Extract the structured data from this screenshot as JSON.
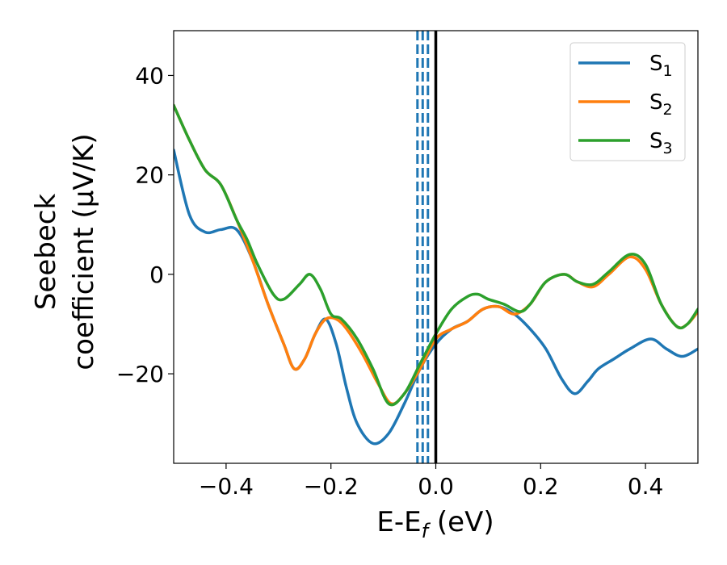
{
  "chart_data": {
    "type": "line",
    "title": "",
    "xlabel": {
      "main": "E-E",
      "sub": "f",
      "unit": " (eV)"
    },
    "ylabel": {
      "line1": "Seebeck",
      "line2": "coefficient  (μV/K)"
    },
    "xlim": [
      -0.5,
      0.5
    ],
    "ylim": [
      -38,
      49
    ],
    "xticks": [
      -0.4,
      -0.2,
      0.0,
      0.2,
      0.4
    ],
    "xtick_labels": [
      "−0.4",
      "−0.2",
      "0.0",
      "0.2",
      "0.4"
    ],
    "yticks": [
      -20,
      0,
      20,
      40
    ],
    "ytick_labels": [
      "−20",
      "0",
      "20",
      "40"
    ],
    "grid": false,
    "legend_position": "top-right",
    "fermi_line": {
      "x": 0.0,
      "color": "#000000"
    },
    "dashed_lines": {
      "x": [
        -0.035,
        -0.025,
        -0.015
      ],
      "color": "#1f77b4"
    },
    "series": [
      {
        "name": "S",
        "sub": "1",
        "color": "#1f77b4",
        "points": [
          [
            -0.5,
            25
          ],
          [
            -0.47,
            12
          ],
          [
            -0.44,
            8.5
          ],
          [
            -0.41,
            9
          ],
          [
            -0.38,
            9
          ],
          [
            -0.35,
            3
          ],
          [
            -0.32,
            -6
          ],
          [
            -0.29,
            -14
          ],
          [
            -0.27,
            -19
          ],
          [
            -0.25,
            -17
          ],
          [
            -0.23,
            -12
          ],
          [
            -0.21,
            -9
          ],
          [
            -0.19,
            -14
          ],
          [
            -0.17,
            -23
          ],
          [
            -0.15,
            -30
          ],
          [
            -0.12,
            -34
          ],
          [
            -0.09,
            -32
          ],
          [
            -0.06,
            -26
          ],
          [
            -0.03,
            -19
          ],
          [
            0.0,
            -14
          ],
          [
            0.03,
            -11
          ],
          [
            0.06,
            -9.5
          ],
          [
            0.09,
            -7
          ],
          [
            0.12,
            -6.5
          ],
          [
            0.15,
            -8
          ],
          [
            0.18,
            -11
          ],
          [
            0.21,
            -15
          ],
          [
            0.24,
            -21
          ],
          [
            0.265,
            -24
          ],
          [
            0.29,
            -21.5
          ],
          [
            0.31,
            -19
          ],
          [
            0.34,
            -17
          ],
          [
            0.37,
            -15
          ],
          [
            0.41,
            -13
          ],
          [
            0.44,
            -15
          ],
          [
            0.47,
            -16.5
          ],
          [
            0.5,
            -15
          ]
        ]
      },
      {
        "name": "S",
        "sub": "2",
        "color": "#ff7f0e",
        "points": [
          [
            -0.5,
            34
          ],
          [
            -0.47,
            27
          ],
          [
            -0.44,
            21
          ],
          [
            -0.41,
            18
          ],
          [
            -0.38,
            11
          ],
          [
            -0.35,
            3
          ],
          [
            -0.32,
            -6
          ],
          [
            -0.29,
            -14
          ],
          [
            -0.27,
            -19
          ],
          [
            -0.25,
            -17
          ],
          [
            -0.23,
            -12
          ],
          [
            -0.21,
            -9
          ],
          [
            -0.19,
            -9
          ],
          [
            -0.17,
            -11
          ],
          [
            -0.14,
            -16
          ],
          [
            -0.11,
            -22
          ],
          [
            -0.085,
            -26
          ],
          [
            -0.06,
            -24
          ],
          [
            -0.03,
            -19
          ],
          [
            0.0,
            -13
          ],
          [
            0.03,
            -11
          ],
          [
            0.06,
            -9.5
          ],
          [
            0.09,
            -7
          ],
          [
            0.12,
            -6.5
          ],
          [
            0.15,
            -8
          ],
          [
            0.18,
            -6
          ],
          [
            0.21,
            -1.5
          ],
          [
            0.245,
            0
          ],
          [
            0.27,
            -1.5
          ],
          [
            0.3,
            -2.5
          ],
          [
            0.33,
            0
          ],
          [
            0.37,
            3.5
          ],
          [
            0.4,
            1
          ],
          [
            0.43,
            -6
          ],
          [
            0.46,
            -10.5
          ],
          [
            0.48,
            -10
          ],
          [
            0.5,
            -7.5
          ]
        ]
      },
      {
        "name": "S",
        "sub": "3",
        "color": "#2ca02c",
        "points": [
          [
            -0.5,
            34
          ],
          [
            -0.47,
            27
          ],
          [
            -0.44,
            21
          ],
          [
            -0.41,
            18
          ],
          [
            -0.38,
            11
          ],
          [
            -0.36,
            7
          ],
          [
            -0.34,
            2
          ],
          [
            -0.31,
            -4
          ],
          [
            -0.29,
            -5
          ],
          [
            -0.26,
            -2
          ],
          [
            -0.24,
            0
          ],
          [
            -0.22,
            -3
          ],
          [
            -0.2,
            -8
          ],
          [
            -0.18,
            -9
          ],
          [
            -0.15,
            -13
          ],
          [
            -0.12,
            -19
          ],
          [
            -0.09,
            -26
          ],
          [
            -0.06,
            -24
          ],
          [
            -0.03,
            -18
          ],
          [
            0.0,
            -12
          ],
          [
            0.03,
            -7
          ],
          [
            0.06,
            -4.5
          ],
          [
            0.08,
            -4
          ],
          [
            0.1,
            -5
          ],
          [
            0.13,
            -6
          ],
          [
            0.16,
            -7.5
          ],
          [
            0.18,
            -6
          ],
          [
            0.21,
            -1.5
          ],
          [
            0.245,
            0
          ],
          [
            0.27,
            -1.5
          ],
          [
            0.3,
            -2
          ],
          [
            0.33,
            0.5
          ],
          [
            0.37,
            4
          ],
          [
            0.4,
            2
          ],
          [
            0.43,
            -6
          ],
          [
            0.46,
            -10.5
          ],
          [
            0.48,
            -10
          ],
          [
            0.5,
            -7
          ]
        ]
      }
    ]
  }
}
